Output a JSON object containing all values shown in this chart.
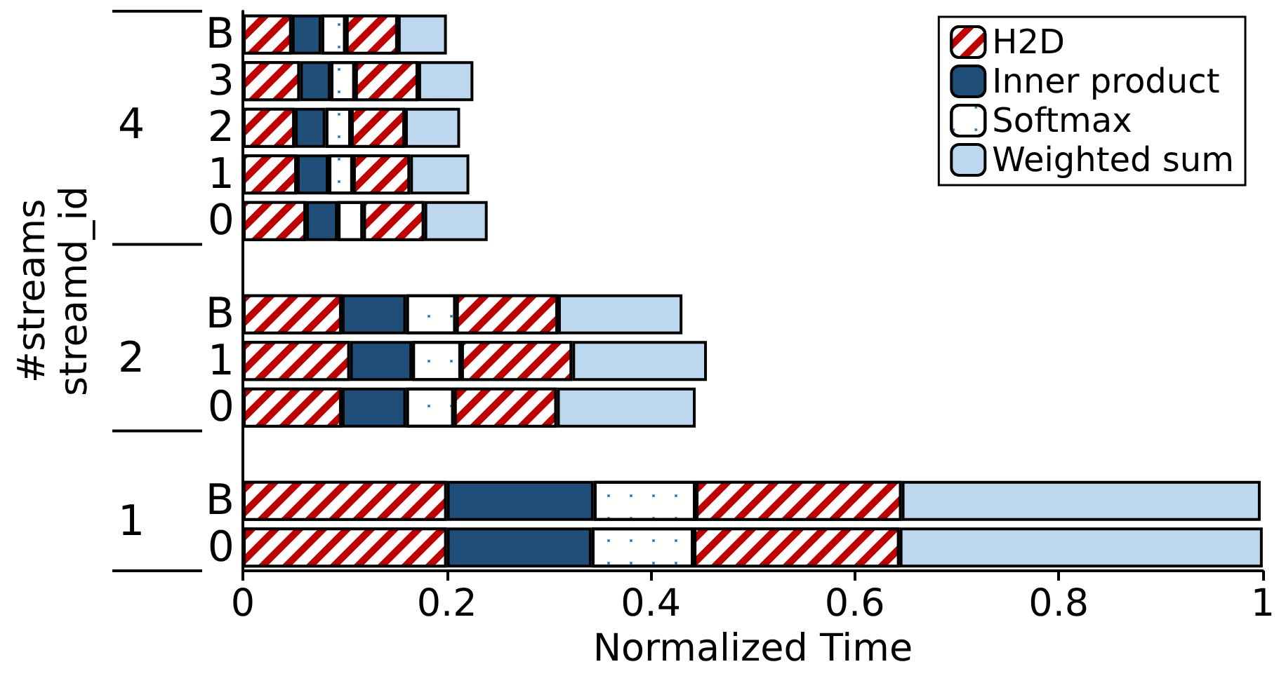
{
  "chart_data": {
    "type": "bar",
    "orientation": "horizontal",
    "stacked": true,
    "xlabel": "Normalized Time",
    "ylabel": "#streams\nstreamd_id",
    "categories": [
      "B",
      "3",
      "2",
      "1",
      "0",
      null,
      "B",
      "1",
      "0",
      null,
      "B",
      "0"
    ],
    "annotations": [
      "4",
      "2",
      "1"
    ],
    "series": [
      {
        "name": "H2D",
        "color": "#c00000",
        "values": [
          0.048,
          0.056,
          0.051,
          0.053,
          0.062,
          null,
          0.097,
          0.105,
          0.097,
          null,
          0.2,
          0.2
        ]
      },
      {
        "name": "Inner product",
        "color": "#1f4e79",
        "values": [
          0.029,
          0.03,
          0.03,
          0.031,
          0.031,
          null,
          0.063,
          0.061,
          0.063,
          null,
          0.144,
          0.142
        ]
      },
      {
        "name": "Softmax",
        "color": "#ffffff",
        "values": [
          0.024,
          0.024,
          0.025,
          0.024,
          0.025,
          null,
          0.049,
          0.048,
          0.047,
          null,
          0.1,
          0.1
        ]
      },
      {
        "color": "#c00000",
        "values": [
          0.051,
          0.062,
          0.053,
          0.056,
          0.06,
          null,
          0.1,
          0.109,
          0.101,
          null,
          0.202,
          0.202
        ]
      },
      {
        "name": "Weighted sum",
        "color": "#bdd7ee",
        "values": [
          0.048,
          0.054,
          0.054,
          0.058,
          0.062,
          null,
          0.122,
          0.132,
          0.136,
          null,
          0.352,
          0.356
        ]
      }
    ],
    "xlim": [
      0,
      1
    ],
    "xticks": [
      0,
      0.2,
      0.4,
      0.6,
      0.8,
      1
    ],
    "legend": "top right",
    "grid": false
  }
}
